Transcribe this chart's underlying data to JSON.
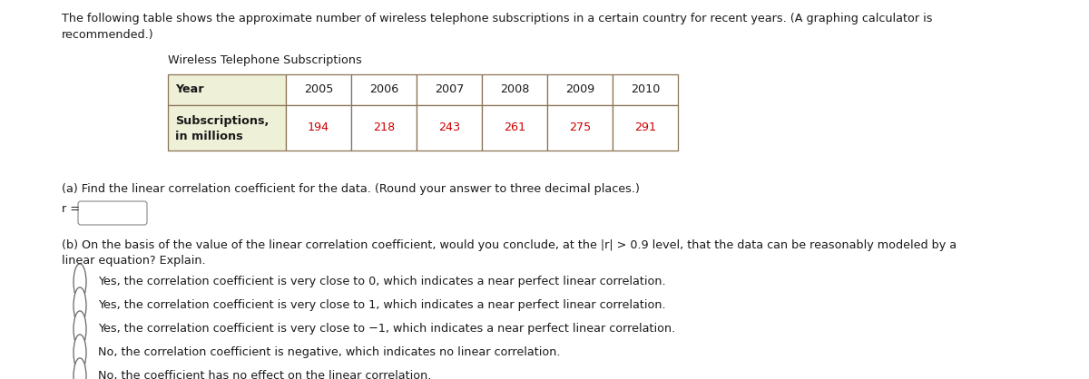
{
  "intro_text_line1": "The following table shows the approximate number of wireless telephone subscriptions in a certain country for recent years. (A graphing calculator is",
  "intro_text_line2": "recommended.)",
  "table_title": "Wireless Telephone Subscriptions",
  "table_headers": [
    "Year",
    "2005",
    "2006",
    "2007",
    "2008",
    "2009",
    "2010"
  ],
  "table_row_label_1": "Subscriptions,",
  "table_row_label_2": "in millions",
  "table_values": [
    "194",
    "218",
    "243",
    "261",
    "275",
    "291"
  ],
  "header_bg": "#eef0d8",
  "data_color": "#cc0000",
  "border_color": "#8B7355",
  "part_a_text": "(a) Find the linear correlation coefficient for the data. (Round your answer to three decimal places.)",
  "r_label": "r =",
  "part_b_line1": "(b) On the basis of the value of the linear correlation coefficient, would you conclude, at the |r| > 0.9 level, that the data can be reasonably modeled by a",
  "part_b_line2": "linear equation? Explain.",
  "options": [
    "Yes, the correlation coefficient is very close to 0, which indicates a near perfect linear correlation.",
    "Yes, the correlation coefficient is very close to 1, which indicates a near perfect linear correlation.",
    "Yes, the correlation coefficient is very close to −1, which indicates a near perfect linear correlation.",
    "No, the correlation coefficient is negative, which indicates no linear correlation.",
    "No, the coefficient has no effect on the linear correlation."
  ],
  "bg_color": "#ffffff",
  "text_color": "#1a1a1a",
  "font_size": 9.2,
  "bold_font_size": 9.2
}
